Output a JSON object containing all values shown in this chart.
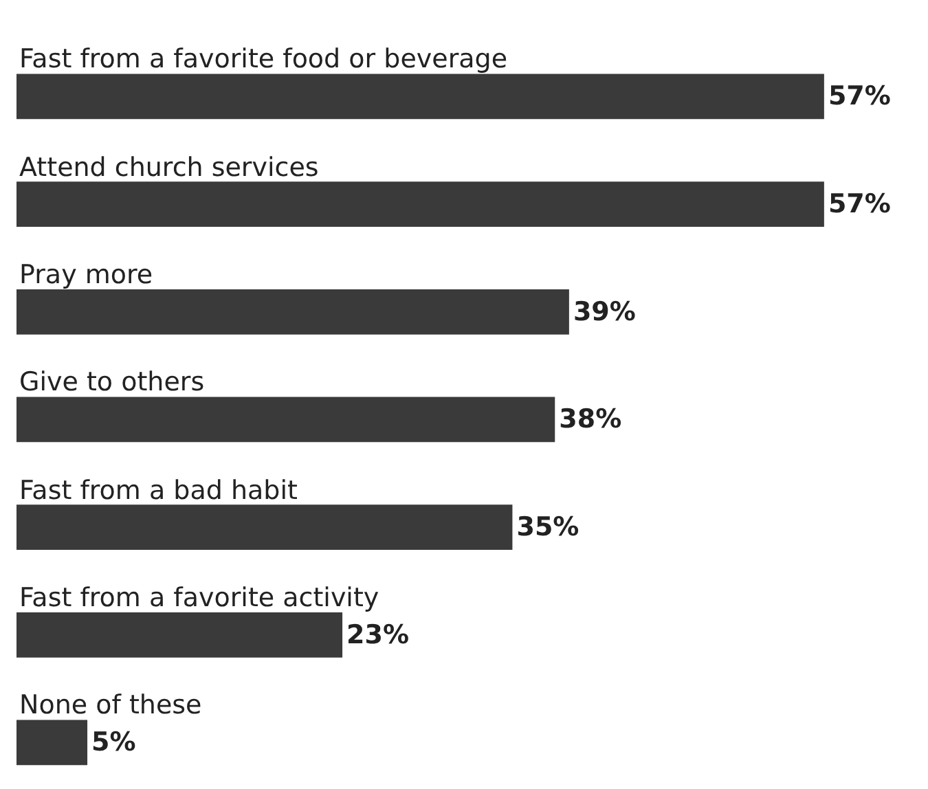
{
  "chart_data": {
    "type": "bar",
    "orientation": "horizontal",
    "categories": [
      "Fast from a favorite food or beverage",
      "Attend church services",
      "Pray more",
      "Give to others",
      "Fast from a bad habit",
      "Fast from a favorite activity",
      "None of these"
    ],
    "values": [
      57,
      57,
      39,
      38,
      35,
      23,
      5
    ],
    "value_labels": [
      "57%",
      "57%",
      "39%",
      "38%",
      "35%",
      "23%",
      "5%"
    ],
    "color": "#3a3a3a"
  }
}
